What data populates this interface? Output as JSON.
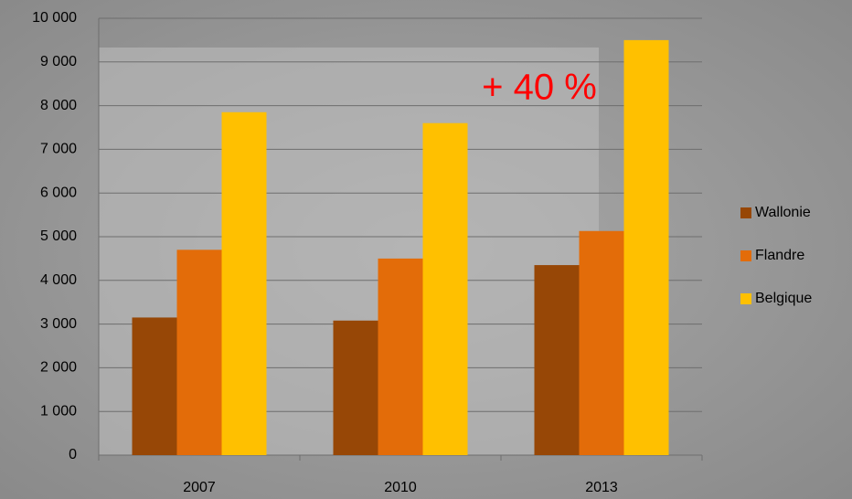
{
  "chart_data": {
    "type": "bar",
    "annotation": "+ 40 %",
    "categories": [
      "2007",
      "2010",
      "2013"
    ],
    "series": [
      {
        "name": "Wallonie",
        "color": "#974706",
        "values": [
          3150,
          3080,
          4350
        ]
      },
      {
        "name": "Flandre",
        "color": "#e36c09",
        "values": [
          4700,
          4500,
          5130
        ]
      },
      {
        "name": "Belgique",
        "color": "#ffc000",
        "values": [
          7850,
          7600,
          9500
        ]
      }
    ],
    "ylim": [
      0,
      10000
    ],
    "yticks": [
      0,
      {
        "value": 1000,
        "label": "1 000"
      },
      {
        "value": 2000,
        "label": "2 000"
      },
      {
        "value": 3000,
        "label": "3 000"
      },
      {
        "value": 4000,
        "label": "4 000"
      },
      {
        "value": 5000,
        "label": "5 000"
      },
      {
        "value": 6000,
        "label": "6 000"
      },
      {
        "value": 7000,
        "label": "7 000"
      },
      {
        "value": 8000,
        "label": "8 000"
      },
      {
        "value": 9000,
        "label": "9 000"
      },
      {
        "value": 10000,
        "label": "10 000"
      }
    ],
    "grid": true,
    "legend": "right"
  }
}
